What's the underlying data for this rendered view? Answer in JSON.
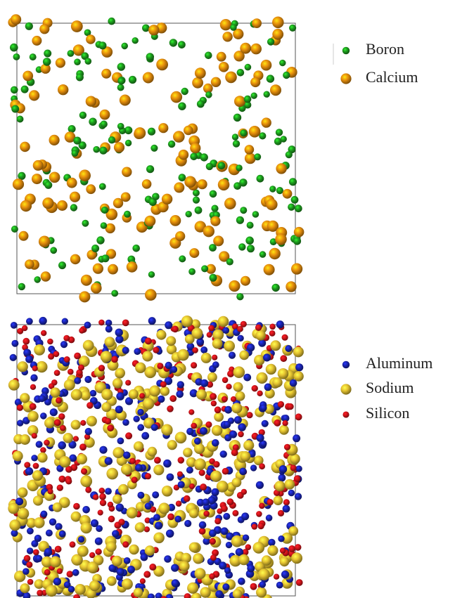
{
  "panels": [
    {
      "legend": [
        {
          "label": "Boron",
          "color": "#1e9a1e"
        },
        {
          "label": "Calcium",
          "color": "#e8900c"
        }
      ]
    },
    {
      "legend": [
        {
          "label": "Aluminum",
          "color": "#1a24b0"
        },
        {
          "label": "Sodium",
          "color": "#e6c431"
        },
        {
          "label": "Silicon",
          "color": "#d0141a"
        }
      ]
    }
  ]
}
